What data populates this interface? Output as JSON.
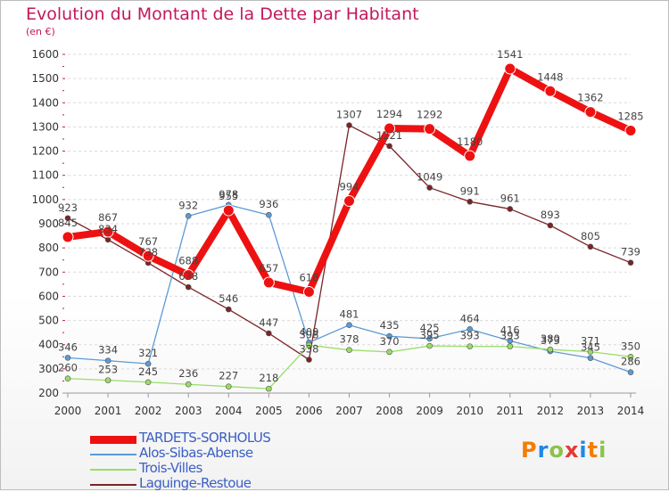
{
  "title": "Evolution du Montant de la Dette par Habitant",
  "unit": "(en €)",
  "logo": "Proxiti",
  "colors": {
    "title": "#c2185b",
    "grid": "#d9d9d9",
    "logo_letters": [
      "#f57c00",
      "#1e88e5",
      "#8bc34a",
      "#e53935",
      "#1e88e5",
      "#f57c00",
      "#8bc34a"
    ]
  },
  "chart_data": {
    "type": "line",
    "x": [
      "2000",
      "2001",
      "2002",
      "2003",
      "2004",
      "2005",
      "2006",
      "2007",
      "2008",
      "2009",
      "2010",
      "2011",
      "2012",
      "2013",
      "2014"
    ],
    "ylim": [
      200,
      1600
    ],
    "yticks": [
      200,
      300,
      400,
      500,
      600,
      700,
      800,
      900,
      1000,
      1100,
      1200,
      1300,
      1400,
      1500,
      1600
    ],
    "grid": "horizontal dashed",
    "legend_position": "bottom-left",
    "series": [
      {
        "name": "TARDETS-SORHOLUS",
        "color": "#ee1111",
        "width": 8,
        "marker": 6,
        "values": [
          845,
          867,
          767,
          688,
          955,
          657,
          618,
          994,
          1294,
          1292,
          1180,
          1541,
          1448,
          1362,
          1285
        ]
      },
      {
        "name": "Alos-Sibas-Abense",
        "color": "#5b9bd5",
        "width": 1.3,
        "marker": 3,
        "values": [
          346,
          334,
          321,
          932,
          978,
          936,
          409,
          481,
          435,
          425,
          464,
          416,
          373,
          345,
          286
        ]
      },
      {
        "name": "Trois-Villes",
        "color": "#99dd66",
        "width": 1.3,
        "marker": 3,
        "values": [
          260,
          253,
          245,
          236,
          227,
          218,
          398,
          378,
          370,
          395,
          393,
          393,
          380,
          371,
          350
        ]
      },
      {
        "name": "Laguinge-Restoue",
        "color": "#7b2326",
        "width": 1.3,
        "marker": 3,
        "values": [
          923,
          834,
          738,
          638,
          546,
          447,
          338,
          1307,
          1221,
          1049,
          991,
          961,
          893,
          805,
          739
        ]
      }
    ]
  }
}
